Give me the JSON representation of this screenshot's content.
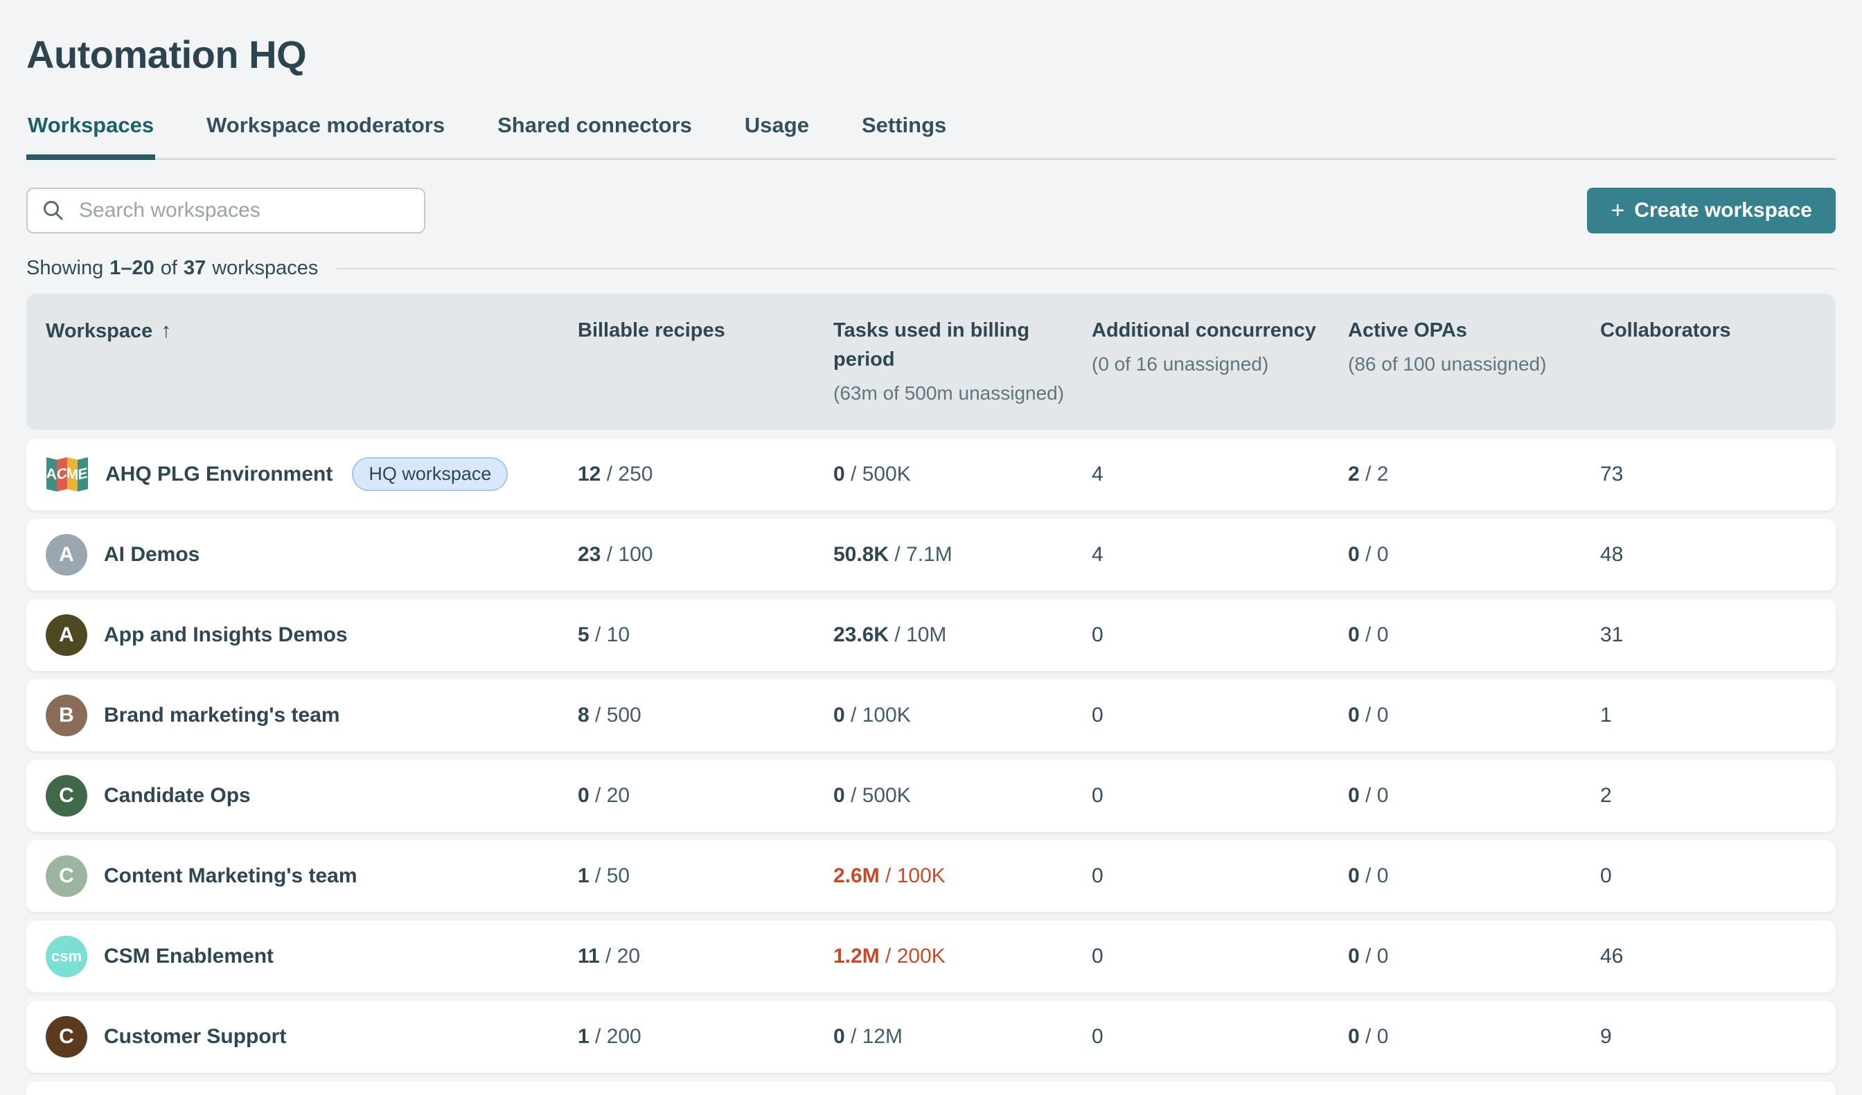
{
  "page": {
    "title": "Automation HQ"
  },
  "tabs": [
    {
      "label": "Workspaces",
      "active": true
    },
    {
      "label": "Workspace moderators",
      "active": false
    },
    {
      "label": "Shared connectors",
      "active": false
    },
    {
      "label": "Usage",
      "active": false
    },
    {
      "label": "Settings",
      "active": false
    }
  ],
  "toolbar": {
    "search_placeholder": "Search workspaces",
    "create_plus": "+",
    "create_label": "Create workspace"
  },
  "summary": {
    "prefix": "Showing",
    "range": "1–20",
    "of": "of",
    "total": "37",
    "suffix": "workspaces"
  },
  "table": {
    "columns": [
      {
        "label": "Workspace",
        "sort_arrow": "↑"
      },
      {
        "label": "Billable recipes"
      },
      {
        "label": "Tasks used in billing period",
        "sub": "(63m of 500m unassigned)"
      },
      {
        "label": "Additional concurrency",
        "sub": "(0 of 16 unassigned)"
      },
      {
        "label": "Active OPAs",
        "sub": "(86 of 100 unassigned)"
      },
      {
        "label": "Collaborators"
      }
    ],
    "rows": [
      {
        "name": "AHQ PLG Environment",
        "badge": "HQ workspace",
        "avatar": {
          "kind": "acme-logo",
          "panels": [
            {
              "letter": "A",
              "color": "#3E8E86"
            },
            {
              "letter": "C",
              "color": "#DF5B4D"
            },
            {
              "letter": "M",
              "color": "#E9B23B"
            },
            {
              "letter": "E",
              "color": "#3E8E86"
            }
          ]
        },
        "billable": {
          "used": "12",
          "total": "250"
        },
        "tasks": {
          "used": "0",
          "total": "500K",
          "over": false
        },
        "concurrency": "4",
        "opas": {
          "used": "2",
          "total": "2"
        },
        "collaborators": "73"
      },
      {
        "name": "AI Demos",
        "avatar": {
          "kind": "letter",
          "letter": "A",
          "color": "#9AA7B1"
        },
        "billable": {
          "used": "23",
          "total": "100"
        },
        "tasks": {
          "used": "50.8K",
          "total": "7.1M",
          "over": false
        },
        "concurrency": "4",
        "opas": {
          "used": "0",
          "total": "0"
        },
        "collaborators": "48"
      },
      {
        "name": "App and Insights Demos",
        "avatar": {
          "kind": "letter",
          "letter": "A",
          "color": "#4E4921"
        },
        "billable": {
          "used": "5",
          "total": "10"
        },
        "tasks": {
          "used": "23.6K",
          "total": "10M",
          "over": false
        },
        "concurrency": "0",
        "opas": {
          "used": "0",
          "total": "0"
        },
        "collaborators": "31"
      },
      {
        "name": "Brand marketing's team",
        "avatar": {
          "kind": "letter",
          "letter": "B",
          "color": "#8A6D59"
        },
        "billable": {
          "used": "8",
          "total": "500"
        },
        "tasks": {
          "used": "0",
          "total": "100K",
          "over": false
        },
        "concurrency": "0",
        "opas": {
          "used": "0",
          "total": "0"
        },
        "collaborators": "1"
      },
      {
        "name": "Candidate Ops",
        "avatar": {
          "kind": "letter",
          "letter": "C",
          "color": "#40694B"
        },
        "billable": {
          "used": "0",
          "total": "20"
        },
        "tasks": {
          "used": "0",
          "total": "500K",
          "over": false
        },
        "concurrency": "0",
        "opas": {
          "used": "0",
          "total": "0"
        },
        "collaborators": "2"
      },
      {
        "name": "Content Marketing's team",
        "avatar": {
          "kind": "letter",
          "letter": "C",
          "color": "#9DB4A1"
        },
        "billable": {
          "used": "1",
          "total": "50"
        },
        "tasks": {
          "used": "2.6M",
          "total": "100K",
          "over": true
        },
        "concurrency": "0",
        "opas": {
          "used": "0",
          "total": "0"
        },
        "collaborators": "0"
      },
      {
        "name": "CSM Enablement",
        "avatar": {
          "kind": "letter",
          "letter": "csm",
          "color": "#7BDFD4"
        },
        "billable": {
          "used": "11",
          "total": "20"
        },
        "tasks": {
          "used": "1.2M",
          "total": "200K",
          "over": true
        },
        "concurrency": "0",
        "opas": {
          "used": "0",
          "total": "0"
        },
        "collaborators": "46"
      },
      {
        "name": "Customer Support",
        "avatar": {
          "kind": "letter",
          "letter": "C",
          "color": "#5C3A1E"
        },
        "billable": {
          "used": "1",
          "total": "200"
        },
        "tasks": {
          "used": "0",
          "total": "12M",
          "over": false
        },
        "concurrency": "0",
        "opas": {
          "used": "0",
          "total": "0"
        },
        "collaborators": "9"
      }
    ]
  },
  "colors": {
    "accent_teal": "#37808D",
    "active_tab_teal": "#1D5F6B",
    "over_limit_red": "#C64B2D",
    "badge_bg": "#D8E8FA",
    "badge_border": "#A5C6EE",
    "heading_text": "#2E4752",
    "page_bg": "#F2F4F5",
    "table_header_bg": "#E3E7E9"
  }
}
